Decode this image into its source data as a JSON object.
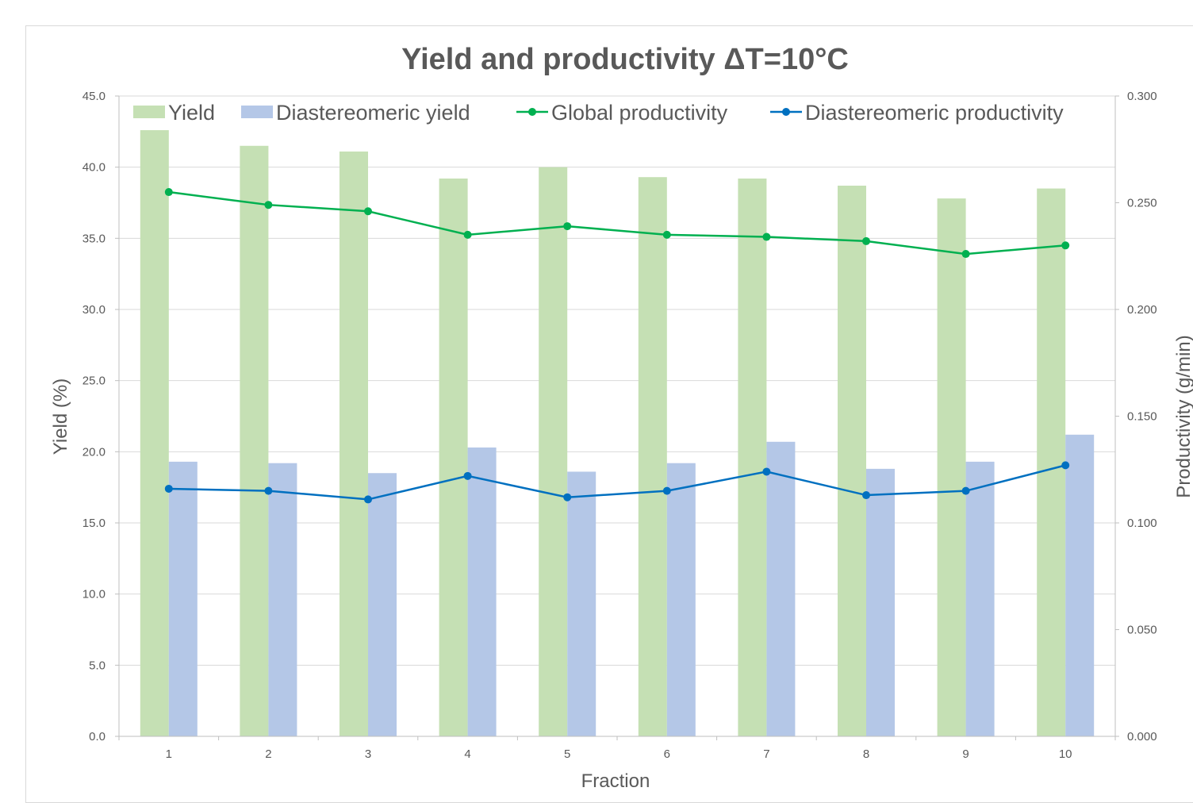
{
  "chart_data": {
    "type": "bar",
    "title": "Yield and productivity ΔT=10°C",
    "xlabel": "Fraction",
    "ylabel": "Yield (%)",
    "y2label": "Productivity (g/min)",
    "categories": [
      "1",
      "2",
      "3",
      "4",
      "5",
      "6",
      "7",
      "8",
      "9",
      "10"
    ],
    "ylim": [
      0,
      45
    ],
    "y2lim": [
      0,
      0.3
    ],
    "yticks": [
      "0.0",
      "5.0",
      "10.0",
      "15.0",
      "20.0",
      "25.0",
      "30.0",
      "35.0",
      "40.0",
      "45.0"
    ],
    "y2ticks": [
      "0.000",
      "0.050",
      "0.100",
      "0.150",
      "0.200",
      "0.250",
      "0.300"
    ],
    "grid": true,
    "legend_position": "top",
    "series": [
      {
        "name": "Yield",
        "kind": "bar",
        "axis": "left",
        "color": "#c5e0b4",
        "values": [
          42.6,
          41.5,
          41.1,
          39.2,
          40.0,
          39.3,
          39.2,
          38.7,
          37.8,
          38.5
        ]
      },
      {
        "name": "Diastereomeric yield",
        "kind": "bar",
        "axis": "left",
        "color": "#b4c7e7",
        "values": [
          19.3,
          19.2,
          18.5,
          20.3,
          18.6,
          19.2,
          20.7,
          18.8,
          19.3,
          21.2
        ]
      },
      {
        "name": "Global productivity",
        "kind": "line",
        "axis": "right",
        "color": "#00b050",
        "values": [
          0.255,
          0.249,
          0.246,
          0.235,
          0.239,
          0.235,
          0.234,
          0.232,
          0.226,
          0.23
        ]
      },
      {
        "name": "Diastereomeric productivity",
        "kind": "line",
        "axis": "right",
        "color": "#0070c0",
        "values": [
          0.116,
          0.115,
          0.111,
          0.122,
          0.112,
          0.115,
          0.124,
          0.113,
          0.115,
          0.127
        ]
      }
    ]
  }
}
